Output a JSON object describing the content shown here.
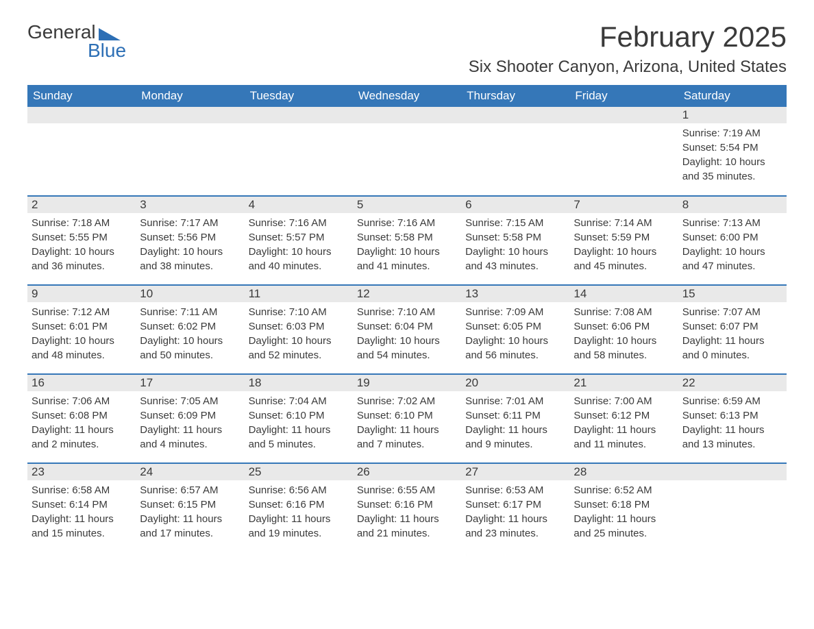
{
  "logo": {
    "word1": "General",
    "word2": "Blue",
    "triangle_color": "#2d6fb5",
    "word1_color": "#3a3a3a",
    "word2_color": "#2d6fb5"
  },
  "title": "February 2025",
  "location": "Six Shooter Canyon, Arizona, United States",
  "colors": {
    "header_bg": "#3577b8",
    "header_text": "#ffffff",
    "daynum_bg": "#e9e9e9",
    "divider": "#3577b8",
    "body_text": "#3a3a3a",
    "background": "#ffffff"
  },
  "fonts": {
    "title_size_pt": 42,
    "location_size_pt": 24,
    "header_size_pt": 17,
    "body_size_pt": 15,
    "logo_size_pt": 28
  },
  "day_headers": [
    "Sunday",
    "Monday",
    "Tuesday",
    "Wednesday",
    "Thursday",
    "Friday",
    "Saturday"
  ],
  "weeks": [
    [
      {
        "num": "",
        "sunrise": "",
        "sunset": "",
        "daylight": ""
      },
      {
        "num": "",
        "sunrise": "",
        "sunset": "",
        "daylight": ""
      },
      {
        "num": "",
        "sunrise": "",
        "sunset": "",
        "daylight": ""
      },
      {
        "num": "",
        "sunrise": "",
        "sunset": "",
        "daylight": ""
      },
      {
        "num": "",
        "sunrise": "",
        "sunset": "",
        "daylight": ""
      },
      {
        "num": "",
        "sunrise": "",
        "sunset": "",
        "daylight": ""
      },
      {
        "num": "1",
        "sunrise": "Sunrise: 7:19 AM",
        "sunset": "Sunset: 5:54 PM",
        "daylight": "Daylight: 10 hours and 35 minutes."
      }
    ],
    [
      {
        "num": "2",
        "sunrise": "Sunrise: 7:18 AM",
        "sunset": "Sunset: 5:55 PM",
        "daylight": "Daylight: 10 hours and 36 minutes."
      },
      {
        "num": "3",
        "sunrise": "Sunrise: 7:17 AM",
        "sunset": "Sunset: 5:56 PM",
        "daylight": "Daylight: 10 hours and 38 minutes."
      },
      {
        "num": "4",
        "sunrise": "Sunrise: 7:16 AM",
        "sunset": "Sunset: 5:57 PM",
        "daylight": "Daylight: 10 hours and 40 minutes."
      },
      {
        "num": "5",
        "sunrise": "Sunrise: 7:16 AM",
        "sunset": "Sunset: 5:58 PM",
        "daylight": "Daylight: 10 hours and 41 minutes."
      },
      {
        "num": "6",
        "sunrise": "Sunrise: 7:15 AM",
        "sunset": "Sunset: 5:58 PM",
        "daylight": "Daylight: 10 hours and 43 minutes."
      },
      {
        "num": "7",
        "sunrise": "Sunrise: 7:14 AM",
        "sunset": "Sunset: 5:59 PM",
        "daylight": "Daylight: 10 hours and 45 minutes."
      },
      {
        "num": "8",
        "sunrise": "Sunrise: 7:13 AM",
        "sunset": "Sunset: 6:00 PM",
        "daylight": "Daylight: 10 hours and 47 minutes."
      }
    ],
    [
      {
        "num": "9",
        "sunrise": "Sunrise: 7:12 AM",
        "sunset": "Sunset: 6:01 PM",
        "daylight": "Daylight: 10 hours and 48 minutes."
      },
      {
        "num": "10",
        "sunrise": "Sunrise: 7:11 AM",
        "sunset": "Sunset: 6:02 PM",
        "daylight": "Daylight: 10 hours and 50 minutes."
      },
      {
        "num": "11",
        "sunrise": "Sunrise: 7:10 AM",
        "sunset": "Sunset: 6:03 PM",
        "daylight": "Daylight: 10 hours and 52 minutes."
      },
      {
        "num": "12",
        "sunrise": "Sunrise: 7:10 AM",
        "sunset": "Sunset: 6:04 PM",
        "daylight": "Daylight: 10 hours and 54 minutes."
      },
      {
        "num": "13",
        "sunrise": "Sunrise: 7:09 AM",
        "sunset": "Sunset: 6:05 PM",
        "daylight": "Daylight: 10 hours and 56 minutes."
      },
      {
        "num": "14",
        "sunrise": "Sunrise: 7:08 AM",
        "sunset": "Sunset: 6:06 PM",
        "daylight": "Daylight: 10 hours and 58 minutes."
      },
      {
        "num": "15",
        "sunrise": "Sunrise: 7:07 AM",
        "sunset": "Sunset: 6:07 PM",
        "daylight": "Daylight: 11 hours and 0 minutes."
      }
    ],
    [
      {
        "num": "16",
        "sunrise": "Sunrise: 7:06 AM",
        "sunset": "Sunset: 6:08 PM",
        "daylight": "Daylight: 11 hours and 2 minutes."
      },
      {
        "num": "17",
        "sunrise": "Sunrise: 7:05 AM",
        "sunset": "Sunset: 6:09 PM",
        "daylight": "Daylight: 11 hours and 4 minutes."
      },
      {
        "num": "18",
        "sunrise": "Sunrise: 7:04 AM",
        "sunset": "Sunset: 6:10 PM",
        "daylight": "Daylight: 11 hours and 5 minutes."
      },
      {
        "num": "19",
        "sunrise": "Sunrise: 7:02 AM",
        "sunset": "Sunset: 6:10 PM",
        "daylight": "Daylight: 11 hours and 7 minutes."
      },
      {
        "num": "20",
        "sunrise": "Sunrise: 7:01 AM",
        "sunset": "Sunset: 6:11 PM",
        "daylight": "Daylight: 11 hours and 9 minutes."
      },
      {
        "num": "21",
        "sunrise": "Sunrise: 7:00 AM",
        "sunset": "Sunset: 6:12 PM",
        "daylight": "Daylight: 11 hours and 11 minutes."
      },
      {
        "num": "22",
        "sunrise": "Sunrise: 6:59 AM",
        "sunset": "Sunset: 6:13 PM",
        "daylight": "Daylight: 11 hours and 13 minutes."
      }
    ],
    [
      {
        "num": "23",
        "sunrise": "Sunrise: 6:58 AM",
        "sunset": "Sunset: 6:14 PM",
        "daylight": "Daylight: 11 hours and 15 minutes."
      },
      {
        "num": "24",
        "sunrise": "Sunrise: 6:57 AM",
        "sunset": "Sunset: 6:15 PM",
        "daylight": "Daylight: 11 hours and 17 minutes."
      },
      {
        "num": "25",
        "sunrise": "Sunrise: 6:56 AM",
        "sunset": "Sunset: 6:16 PM",
        "daylight": "Daylight: 11 hours and 19 minutes."
      },
      {
        "num": "26",
        "sunrise": "Sunrise: 6:55 AM",
        "sunset": "Sunset: 6:16 PM",
        "daylight": "Daylight: 11 hours and 21 minutes."
      },
      {
        "num": "27",
        "sunrise": "Sunrise: 6:53 AM",
        "sunset": "Sunset: 6:17 PM",
        "daylight": "Daylight: 11 hours and 23 minutes."
      },
      {
        "num": "28",
        "sunrise": "Sunrise: 6:52 AM",
        "sunset": "Sunset: 6:18 PM",
        "daylight": "Daylight: 11 hours and 25 minutes."
      },
      {
        "num": "",
        "sunrise": "",
        "sunset": "",
        "daylight": ""
      }
    ]
  ]
}
